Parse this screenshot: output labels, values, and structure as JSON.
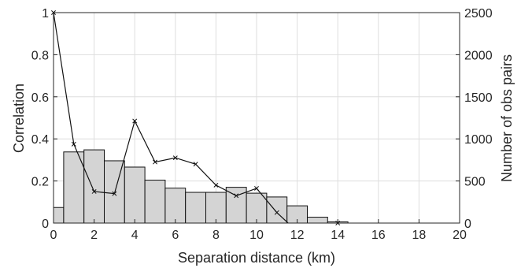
{
  "chart_data": {
    "type": "bar",
    "xlabel": "Separation distance (km)",
    "ylabel": "Correlation",
    "y2label": "Number of obs pairs",
    "xlim": [
      0,
      20
    ],
    "ylim": [
      0,
      1
    ],
    "y2lim": [
      0,
      2500
    ],
    "grid": true,
    "x_ticks": [
      0,
      2,
      4,
      6,
      8,
      10,
      12,
      14,
      16,
      18,
      20
    ],
    "y_ticks": [
      0,
      0.2,
      0.4,
      0.6,
      0.8,
      1
    ],
    "y_tick_labels": [
      "0",
      "0.2",
      "0.4",
      "0.6",
      "0.8",
      "1"
    ],
    "y2_ticks": [
      0,
      500,
      1000,
      1500,
      2000,
      2500
    ],
    "series": [
      {
        "type": "bar",
        "axis": "right",
        "bin_width": 1,
        "bin_centers": [
          0,
          1,
          2,
          3,
          4,
          5,
          6,
          7,
          8,
          9,
          10,
          11,
          12,
          13,
          14
        ],
        "values": [
          185,
          845,
          870,
          740,
          665,
          510,
          415,
          365,
          365,
          425,
          355,
          310,
          205,
          70,
          15
        ]
      },
      {
        "type": "line",
        "axis": "left",
        "marker": "x",
        "x": [
          0,
          1,
          2,
          3,
          4,
          5,
          6,
          7,
          8,
          9,
          10,
          11,
          12,
          13,
          14
        ],
        "y": [
          1.0,
          0.375,
          0.15,
          0.14,
          0.485,
          0.29,
          0.31,
          0.28,
          0.18,
          0.13,
          0.165,
          0.05,
          -0.04,
          null,
          0.0
        ]
      }
    ]
  }
}
